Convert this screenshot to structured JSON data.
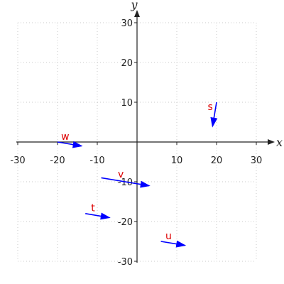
{
  "chart_data": {
    "type": "vector-field",
    "title": "",
    "xlabel": "x",
    "ylabel": "y",
    "xlim": [
      -30,
      30
    ],
    "ylim": [
      -30,
      30
    ],
    "x_ticks": [
      -30,
      -20,
      -10,
      10,
      20,
      30
    ],
    "y_ticks": [
      -30,
      -20,
      -10,
      10,
      20,
      30
    ],
    "grid": true,
    "vector_color": "#0000ff",
    "label_color": "#dd0000",
    "vectors": [
      {
        "name": "s",
        "start": [
          20,
          10
        ],
        "end": [
          19,
          4
        ]
      },
      {
        "name": "w",
        "start": [
          -20,
          0
        ],
        "end": [
          -14,
          -1
        ]
      },
      {
        "name": "v",
        "start": [
          -9,
          -9
        ],
        "end": [
          3,
          -11
        ]
      },
      {
        "name": "t",
        "start": [
          -13,
          -18
        ],
        "end": [
          -7,
          -19
        ]
      },
      {
        "name": "u",
        "start": [
          6,
          -25
        ],
        "end": [
          12,
          -26
        ]
      }
    ]
  }
}
